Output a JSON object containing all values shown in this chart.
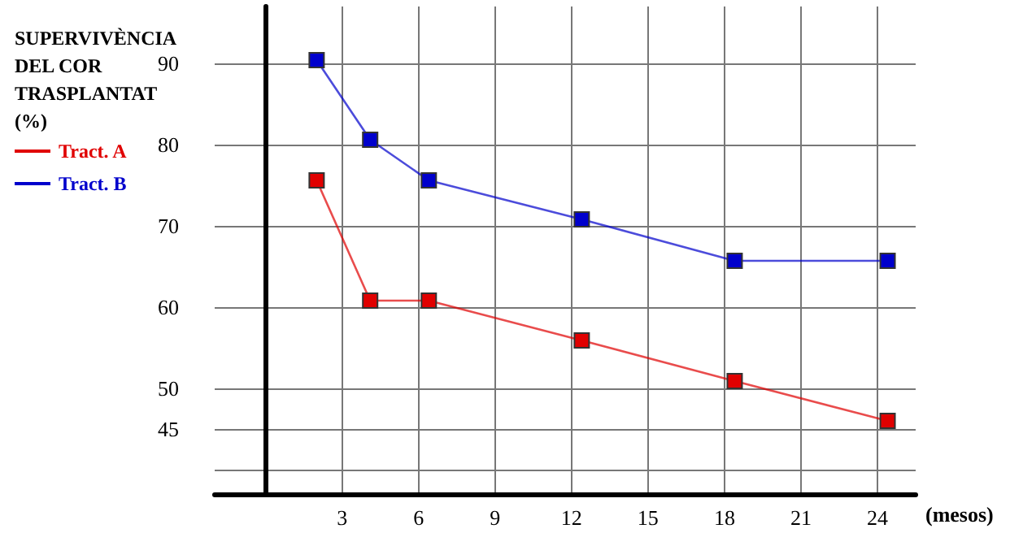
{
  "chart_data": {
    "type": "line",
    "ylabel": "SUPERVIVÈNCIA DEL COR TRASPLANTAT (%)",
    "xlabel": "(mesos)",
    "series": [
      {
        "name": "Tract. A",
        "color": "#e00000",
        "x": [
          2,
          4.1,
          6.4,
          12.4,
          18.4,
          24.4
        ],
        "values": [
          75.6,
          60.8,
          60.8,
          55.9,
          50.9,
          46.0
        ]
      },
      {
        "name": "Tract. B",
        "color": "#0000cc",
        "x": [
          2,
          4.1,
          6.4,
          12.4,
          18.4,
          24.4
        ],
        "values": [
          90.4,
          80.6,
          75.6,
          70.8,
          65.7,
          65.7
        ]
      }
    ],
    "xlim": [
      -2,
      25.5
    ],
    "xticks": [
      3,
      6,
      9,
      12,
      15,
      18,
      21,
      24
    ],
    "ylim": [
      37,
      97
    ],
    "yticks": [
      {
        "value": 40,
        "label": null
      },
      45,
      50,
      60,
      70,
      80,
      90
    ],
    "grid": true,
    "legend": "left",
    "marker": "square",
    "line_style": "solid"
  }
}
